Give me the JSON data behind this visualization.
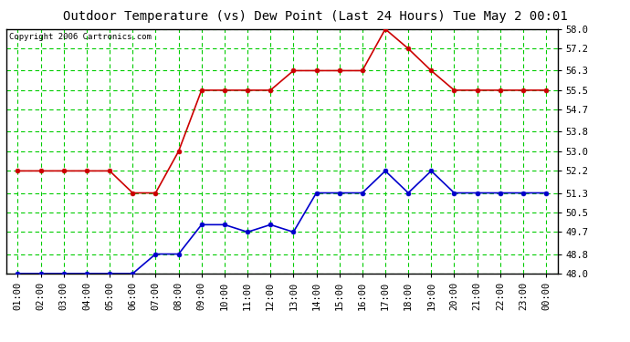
{
  "title": "Outdoor Temperature (vs) Dew Point (Last 24 Hours) Tue May 2 00:01",
  "copyright": "Copyright 2006 Cartronics.com",
  "x_labels": [
    "01:00",
    "02:00",
    "03:00",
    "04:00",
    "05:00",
    "06:00",
    "07:00",
    "08:00",
    "09:00",
    "10:00",
    "11:00",
    "12:00",
    "13:00",
    "14:00",
    "15:00",
    "16:00",
    "17:00",
    "18:00",
    "19:00",
    "20:00",
    "21:00",
    "22:00",
    "23:00",
    "00:00"
  ],
  "temp_data": [
    52.2,
    52.2,
    52.2,
    52.2,
    52.2,
    51.3,
    51.3,
    53.0,
    55.5,
    55.5,
    55.5,
    55.5,
    56.3,
    56.3,
    56.3,
    56.3,
    58.0,
    57.2,
    56.3,
    55.5,
    55.5,
    55.5,
    55.5,
    55.5
  ],
  "dew_data": [
    48.0,
    48.0,
    48.0,
    48.0,
    48.0,
    48.0,
    48.8,
    48.8,
    50.0,
    50.0,
    49.7,
    50.0,
    49.7,
    51.3,
    51.3,
    51.3,
    52.2,
    51.3,
    52.2,
    51.3,
    51.3,
    51.3,
    51.3,
    51.3
  ],
  "temp_color": "#cc0000",
  "dew_color": "#0000cc",
  "bg_color": "#ffffff",
  "plot_bg_color": "#ffffff",
  "grid_color": "#00cc00",
  "y_min": 48.0,
  "y_max": 58.0,
  "y_ticks": [
    48.0,
    48.8,
    49.7,
    50.5,
    51.3,
    52.2,
    53.0,
    53.8,
    54.7,
    55.5,
    56.3,
    57.2,
    58.0
  ],
  "title_fontsize": 10,
  "copyright_fontsize": 6.5,
  "tick_fontsize": 7.5,
  "marker_size": 3.5,
  "line_width": 1.2
}
